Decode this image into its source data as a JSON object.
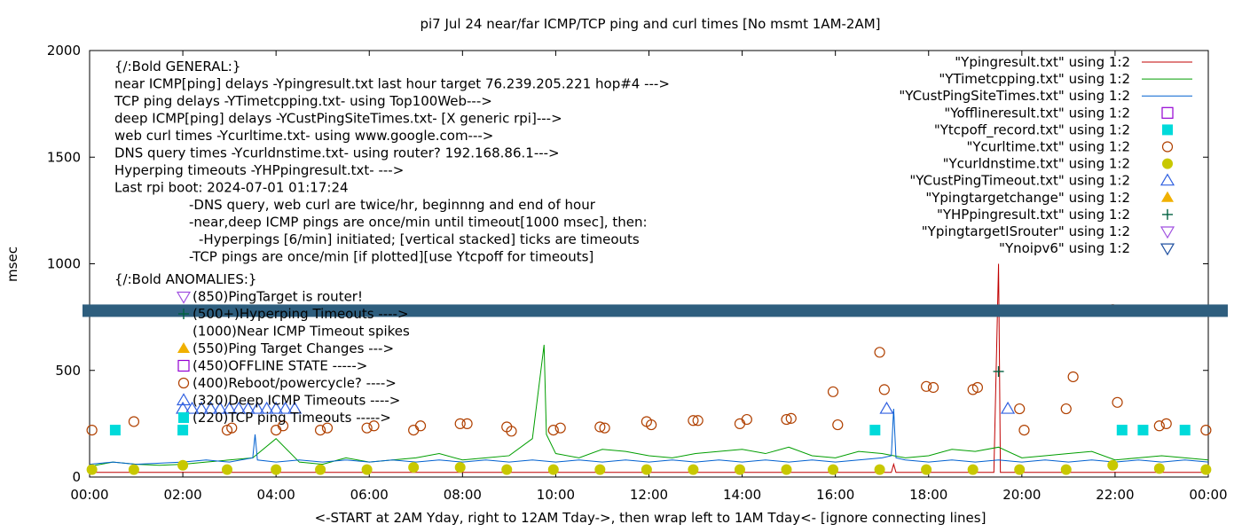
{
  "chart_data": {
    "type": "line",
    "title": "pi7 Jul 24  near/far ICMP/TCP ping and curl times [No msmt 1AM-2AM]",
    "xlabel": "<-START at 2AM Yday, right to 12AM Tday->, then wrap left to 1AM Tday<- [ignore connecting lines]",
    "ylabel": "msec",
    "xlim": [
      0,
      24
    ],
    "ylim": [
      0,
      2000
    ],
    "x_ticks": [
      "00:00",
      "02:00",
      "04:00",
      "06:00",
      "08:00",
      "10:00",
      "12:00",
      "14:00",
      "16:00",
      "18:00",
      "20:00",
      "22:00",
      "00:00"
    ],
    "y_ticks": [
      "0",
      "500",
      "1000",
      "1500",
      "2000"
    ],
    "legend_position": "top-right",
    "legend": [
      {
        "label": "\"Ypingresult.txt\" using 1:2",
        "color": "#c00000",
        "marker": "line"
      },
      {
        "label": "\"YTimetcpping.txt\" using 1:2",
        "color": "#009e00",
        "marker": "line"
      },
      {
        "label": "\"YCustPingSiteTimes.txt\" using 1:2",
        "color": "#0060d0",
        "marker": "line"
      },
      {
        "label": "\"Yofflineresult.txt\" using 1:2",
        "color": "#9400d3",
        "marker": "open-square"
      },
      {
        "label": "\"Ytcpoff_record.txt\" using 1:2",
        "color": "#00dada",
        "marker": "filled-square"
      },
      {
        "label": "\"Ycurltime.txt\" using 1:2",
        "color": "#b04000",
        "marker": "open-circle"
      },
      {
        "label": "\"Ycurldnstime.txt\" using 1:2",
        "color": "#c8c800",
        "marker": "filled-circle"
      },
      {
        "label": "\"YCustPingTimeout.txt\" using 1:2",
        "color": "#3060e0",
        "marker": "open-triangle-up"
      },
      {
        "label": "\"Ypingtargetchange\" using 1:2",
        "color": "#f0b000",
        "marker": "filled-triangle-up"
      },
      {
        "label": "\"YHPpingresult.txt\" using 1:2",
        "color": "#006040",
        "marker": "plus"
      },
      {
        "label": "\"YpingtargetISrouter\" using 1:2",
        "color": "#a050e0",
        "marker": "open-triangle-down"
      },
      {
        "label": "\"Ynoipv6\" using 1:2",
        "color": "#2050a0",
        "marker": "open-triangle-down"
      }
    ],
    "annotations": [
      "{/:Bold GENERAL:}",
      "near ICMP[ping] delays -Ypingresult.txt last hour target 76.239.205.221 hop#4 --->",
      "TCP ping delays -YTimetcpping.txt- using Top100Web--->",
      "deep ICMP[ping] delays -YCustPingSiteTimes.txt- [X generic rpi]--->",
      "web curl times -Ycurltime.txt- using www.google.com--->",
      "DNS query times -Ycurldnstime.txt- using router? 192.168.86.1--->",
      "Hyperping timeouts -YHPpingresult.txt- --->",
      "Last rpi boot: 2024-07-01 01:17:24",
      "-DNS query, web curl are twice/hr, beginnng and end of hour",
      "-near,deep ICMP pings are once/min until timeout[1000 msec], then:",
      "-Hyperpings [6/min] initiated; [vertical stacked] ticks are timeouts",
      "-TCP pings are once/min [if plotted][use Ytcpoff for timeouts]",
      "{/:Bold ANOMALIES:}",
      "(850)PingTarget is router!",
      "(500+)Hyperping Timeouts ---->",
      "(1000)Near ICMP Timeout spikes",
      "(550)Ping Target Changes --->",
      "(450)OFFLINE STATE ----->",
      "(400)Reboot/powercycle? ---->",
      "(320)Deep ICMP Timeouts ---->",
      "(220)TCP ping Timeouts ----->"
    ],
    "series": [
      {
        "name": "\"Ypingresult.txt\" using 1:2",
        "style": "line",
        "color": "#c00000",
        "x": [
          0.0,
          0.5,
          1.0,
          1.5,
          2.0,
          3.0,
          4.0,
          5.0,
          6.0,
          7.0,
          8.0,
          9.0,
          10.0,
          11.0,
          12.0,
          13.0,
          14.0,
          15.0,
          16.0,
          17.0,
          17.2,
          17.25,
          17.3,
          18.0,
          19.0,
          19.4,
          19.5,
          19.52,
          19.54,
          19.6,
          20.0,
          21.0,
          22.0,
          23.0,
          24.0
        ],
        "y": [
          22,
          22,
          22,
          22,
          22,
          22,
          22,
          22,
          22,
          22,
          22,
          22,
          22,
          22,
          22,
          22,
          22,
          22,
          22,
          22,
          22,
          60,
          22,
          22,
          22,
          22,
          1000,
          540,
          22,
          22,
          22,
          22,
          22,
          22,
          22
        ]
      },
      {
        "name": "\"YTimetcpping.txt\" using 1:2",
        "style": "line",
        "color": "#009e00",
        "x": [
          0.0,
          0.5,
          1.0,
          1.5,
          2.0,
          2.5,
          3.0,
          3.5,
          4.0,
          4.5,
          5.0,
          5.5,
          6.0,
          6.5,
          7.0,
          7.5,
          8.0,
          8.5,
          9.0,
          9.5,
          9.75,
          9.8,
          10.0,
          10.5,
          11.0,
          11.5,
          12.0,
          12.5,
          13.0,
          13.5,
          14.0,
          14.5,
          15.0,
          15.5,
          16.0,
          16.5,
          17.0,
          17.5,
          18.0,
          18.5,
          19.0,
          19.5,
          20.0,
          20.5,
          21.0,
          21.5,
          22.0,
          22.5,
          23.0,
          23.5,
          24.0
        ],
        "y": [
          50,
          70,
          60,
          55,
          60,
          70,
          80,
          90,
          180,
          70,
          60,
          90,
          70,
          80,
          90,
          110,
          80,
          90,
          100,
          180,
          620,
          200,
          110,
          90,
          130,
          120,
          100,
          90,
          110,
          120,
          130,
          110,
          140,
          100,
          90,
          120,
          110,
          90,
          100,
          130,
          120,
          140,
          90,
          100,
          110,
          120,
          80,
          90,
          100,
          90,
          80
        ]
      },
      {
        "name": "\"YCustPingSiteTimes.txt\" using 1:2",
        "style": "line",
        "color": "#0060d0",
        "x": [
          0.0,
          0.5,
          1.0,
          1.5,
          2.0,
          2.5,
          3.0,
          3.5,
          3.55,
          3.6,
          4.0,
          4.5,
          5.0,
          5.5,
          6.0,
          6.5,
          7.0,
          7.5,
          8.0,
          8.5,
          9.0,
          9.5,
          10.0,
          10.5,
          11.0,
          11.5,
          12.0,
          12.5,
          13.0,
          13.5,
          14.0,
          14.5,
          15.0,
          15.5,
          16.0,
          16.5,
          17.0,
          17.2,
          17.25,
          17.3,
          17.5,
          18.0,
          18.5,
          19.0,
          19.5,
          20.0,
          20.5,
          21.0,
          21.5,
          22.0,
          22.5,
          23.0,
          23.5,
          24.0
        ],
        "y": [
          60,
          70,
          60,
          65,
          70,
          80,
          70,
          90,
          200,
          80,
          70,
          80,
          70,
          80,
          70,
          80,
          70,
          80,
          70,
          80,
          70,
          80,
          70,
          80,
          70,
          80,
          70,
          80,
          70,
          80,
          70,
          80,
          70,
          80,
          70,
          80,
          90,
          100,
          320,
          90,
          80,
          70,
          80,
          70,
          80,
          70,
          80,
          70,
          80,
          70,
          80,
          70,
          80,
          70
        ]
      },
      {
        "name": "\"Ytcpoff_record.txt\" using 1:2",
        "style": "filled-square",
        "color": "#00dada",
        "x": [
          0.55,
          2.0,
          16.85,
          22.15,
          22.6,
          23.5
        ],
        "y": [
          220,
          220,
          220,
          220,
          220,
          220
        ]
      },
      {
        "name": "\"Ycurltime.txt\" using 1:2",
        "style": "open-circle",
        "color": "#b04000",
        "x": [
          0.05,
          0.95,
          2.95,
          3.05,
          4.0,
          4.15,
          4.95,
          5.1,
          5.95,
          6.1,
          6.95,
          7.1,
          7.95,
          8.1,
          8.95,
          9.05,
          9.95,
          10.1,
          10.95,
          11.05,
          11.95,
          12.05,
          12.95,
          13.05,
          13.95,
          14.1,
          14.95,
          15.05,
          15.95,
          16.05,
          16.95,
          17.05,
          17.95,
          18.1,
          18.95,
          19.05,
          19.95,
          20.05,
          20.95,
          21.1,
          21.95,
          22.05,
          22.95,
          23.1,
          23.95
        ],
        "y": [
          220,
          260,
          220,
          230,
          220,
          240,
          220,
          230,
          230,
          240,
          220,
          240,
          250,
          250,
          235,
          215,
          220,
          230,
          235,
          230,
          260,
          245,
          265,
          265,
          250,
          270,
          270,
          275,
          400,
          245,
          585,
          410,
          425,
          420,
          410,
          420,
          320,
          220,
          320,
          470,
          785,
          350,
          240,
          250,
          220
        ]
      },
      {
        "name": "\"Ycurldnstime.txt\" using 1:2",
        "style": "filled-circle",
        "color": "#c8c800",
        "x": [
          0.05,
          0.95,
          2.0,
          2.95,
          4.0,
          4.95,
          5.95,
          6.95,
          7.95,
          8.95,
          9.95,
          10.95,
          11.95,
          12.95,
          13.95,
          14.95,
          15.95,
          16.95,
          17.95,
          18.95,
          19.95,
          20.95,
          21.95,
          22.95,
          23.95
        ],
        "y": [
          35,
          35,
          55,
          35,
          35,
          35,
          35,
          45,
          45,
          35,
          35,
          35,
          35,
          35,
          35,
          35,
          35,
          35,
          35,
          35,
          35,
          35,
          55,
          40,
          35
        ]
      },
      {
        "name": "\"YCustPingTimeout.txt\" using 1:2",
        "style": "open-triangle-up",
        "color": "#3060e0",
        "x": [
          2.0,
          2.2,
          2.4,
          2.6,
          2.8,
          3.0,
          3.2,
          3.4,
          3.6,
          3.8,
          4.0,
          4.2,
          4.4,
          17.1,
          19.7
        ],
        "y": [
          320,
          320,
          320,
          320,
          320,
          320,
          320,
          320,
          320,
          320,
          320,
          320,
          320,
          320,
          320
        ]
      },
      {
        "name": "\"YHPpingresult.txt\" using 1:2",
        "style": "plus",
        "color": "#006040",
        "x": [
          19.5
        ],
        "y": [
          495
        ]
      },
      {
        "name": "\"Ynoipv6\" using 1:2",
        "style": "band",
        "color": "#2e5e7e",
        "x": [
          0.0,
          24.0
        ],
        "y": [
          780,
          780
        ]
      }
    ]
  }
}
